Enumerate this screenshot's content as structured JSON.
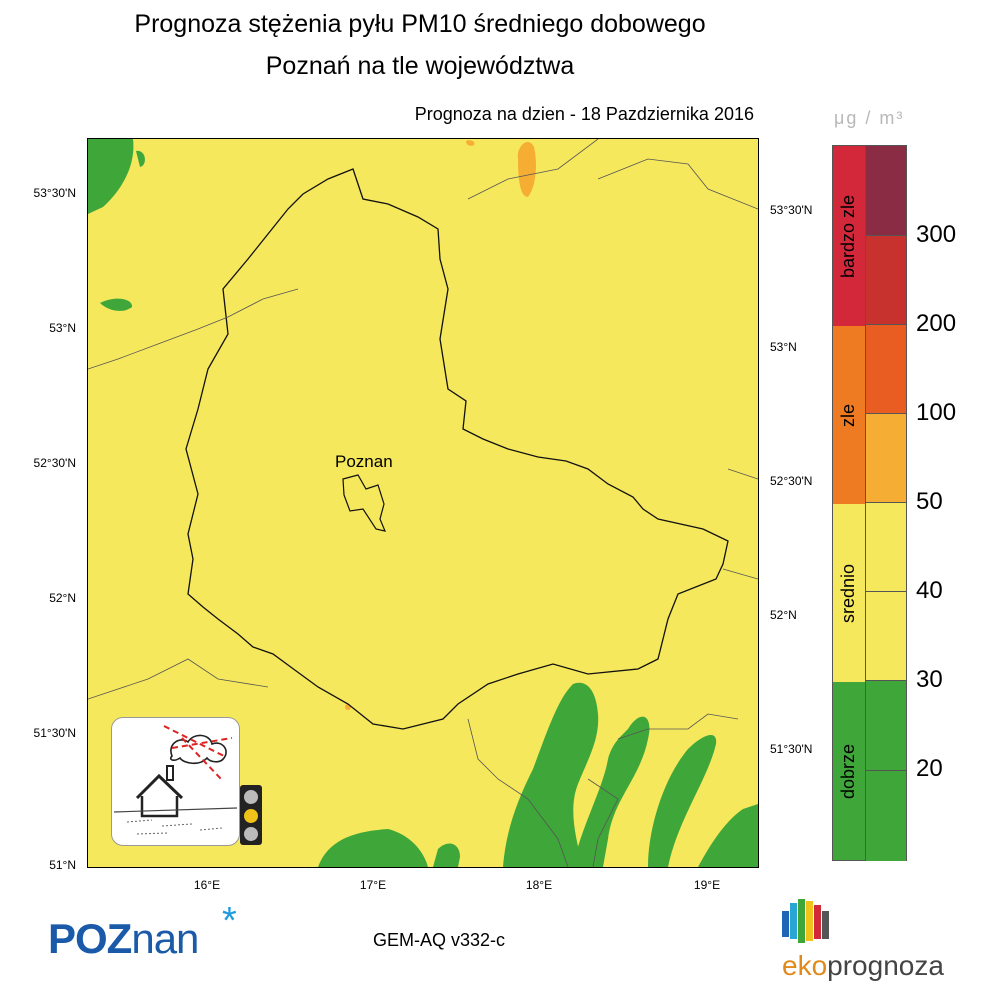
{
  "header": {
    "title_line1": "Prognoza stężenia pyłu PM10 średniego dobowego",
    "title_line2": "Poznań na tle województwa",
    "forecast_date": "Prognoza na dzien -  18 Pazdziernika 2016"
  },
  "map": {
    "city_label": "Poznan",
    "lat_labels_left": [
      "53°30'N",
      "53°N",
      "52°30'N",
      "52°N",
      "51°30'N",
      "51°N"
    ],
    "lat_labels_right": [
      "53°30'N",
      "53°N",
      "52°30'N",
      "52°N",
      "51°30'N"
    ],
    "lon_labels": [
      "16°E",
      "17°E",
      "18°E",
      "19°E"
    ],
    "colors": {
      "dobrze": "#3fa73a",
      "srednio": "#f6e85c",
      "elevated": "#f5ae33",
      "border": "#222222"
    }
  },
  "legend": {
    "unit": "μg / m³",
    "categories": [
      {
        "label": "bardzo zle",
        "color": "#d3283a"
      },
      {
        "label": "zle",
        "color": "#ee7a22"
      },
      {
        "label": "srednio",
        "color": "#f6e85c"
      },
      {
        "label": "dobrze",
        "color": "#3fa73a"
      }
    ],
    "scale_colors": [
      "#8b2c45",
      "#c7322f",
      "#e95d22",
      "#f5ae33",
      "#f6e85c",
      "#f6e85c",
      "#3fa73a",
      "#3fa73a"
    ],
    "scale_values": [
      "300",
      "200",
      "100",
      "50",
      "40",
      "30",
      "20"
    ]
  },
  "footer": {
    "city_logo_caps": "POZ",
    "city_logo_lower": "nan",
    "model": "GEM-AQ v332-c",
    "brand_eko": "eko",
    "brand_rest": "prognoza"
  }
}
